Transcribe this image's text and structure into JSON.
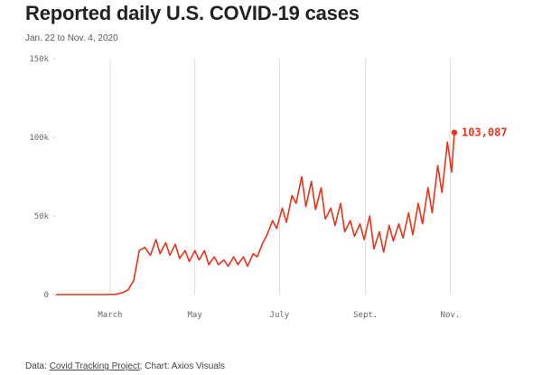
{
  "header": {
    "title": "Reported daily U.S. COVID-19 cases",
    "subtitle": "Jan. 22 to Nov. 4, 2020"
  },
  "footer": {
    "prefix": "Data: ",
    "source_link": "Covid Tracking Project",
    "suffix": "; Chart: Axios Visuals"
  },
  "colors": {
    "line": "#e8341c",
    "grid": "#dddddd",
    "axis_text": "#666666"
  },
  "chart_data": {
    "type": "line",
    "title": "Reported daily U.S. COVID-19 cases",
    "subtitle": "Jan. 22 to Nov. 4, 2020",
    "xlabel": "",
    "ylabel": "",
    "ylim": [
      0,
      150000
    ],
    "xlim": [
      "2020-01-22",
      "2020-11-04"
    ],
    "y_ticks": [
      {
        "value": 0,
        "label": "0"
      },
      {
        "value": 50000,
        "label": "50k"
      },
      {
        "value": 100000,
        "label": "100k"
      },
      {
        "value": 150000,
        "label": "150k"
      }
    ],
    "x_ticks": [
      {
        "value": "2020-03-01",
        "label": "March"
      },
      {
        "value": "2020-05-01",
        "label": "May"
      },
      {
        "value": "2020-07-01",
        "label": "July"
      },
      {
        "value": "2020-09-01",
        "label": "Sept."
      },
      {
        "value": "2020-11-01",
        "label": "Nov."
      }
    ],
    "grid": "vertical",
    "series": [
      {
        "x": [
          "2020-01-22",
          "2020-02-25",
          "2020-03-05",
          "2020-03-10",
          "2020-03-14",
          "2020-03-18",
          "2020-03-22",
          "2020-03-26",
          "2020-03-30",
          "2020-04-03",
          "2020-04-06",
          "2020-04-10",
          "2020-04-13",
          "2020-04-17",
          "2020-04-20",
          "2020-04-24",
          "2020-04-27",
          "2020-05-01",
          "2020-05-04",
          "2020-05-08",
          "2020-05-11",
          "2020-05-15",
          "2020-05-18",
          "2020-05-22",
          "2020-05-25",
          "2020-05-29",
          "2020-06-01",
          "2020-06-05",
          "2020-06-08",
          "2020-06-12",
          "2020-06-15",
          "2020-06-19",
          "2020-06-22",
          "2020-06-26",
          "2020-06-29",
          "2020-07-03",
          "2020-07-06",
          "2020-07-10",
          "2020-07-13",
          "2020-07-17",
          "2020-07-20",
          "2020-07-24",
          "2020-07-27",
          "2020-07-31",
          "2020-08-03",
          "2020-08-07",
          "2020-08-10",
          "2020-08-14",
          "2020-08-17",
          "2020-08-21",
          "2020-08-24",
          "2020-08-28",
          "2020-08-31",
          "2020-09-04",
          "2020-09-07",
          "2020-09-11",
          "2020-09-14",
          "2020-09-18",
          "2020-09-21",
          "2020-09-25",
          "2020-09-28",
          "2020-10-02",
          "2020-10-05",
          "2020-10-09",
          "2020-10-12",
          "2020-10-16",
          "2020-10-19",
          "2020-10-23",
          "2020-10-26",
          "2020-10-30",
          "2020-11-02",
          "2020-11-04"
        ],
        "y": [
          0,
          0,
          200,
          1200,
          3000,
          9000,
          28000,
          30000,
          25000,
          35000,
          26000,
          33000,
          25000,
          32000,
          23000,
          28000,
          21000,
          28000,
          22000,
          28000,
          19000,
          24000,
          19000,
          22000,
          18000,
          24000,
          19000,
          24000,
          18000,
          26000,
          24000,
          33000,
          38000,
          47000,
          42000,
          55000,
          46000,
          63000,
          58000,
          75000,
          56000,
          72000,
          54000,
          68000,
          48000,
          55000,
          44000,
          58000,
          40000,
          47000,
          37000,
          45000,
          35000,
          50000,
          29000,
          40000,
          27000,
          44000,
          34000,
          45000,
          36000,
          52000,
          38000,
          58000,
          45000,
          68000,
          52000,
          82000,
          65000,
          97000,
          78000,
          103087
        ]
      }
    ],
    "annotations": [
      {
        "text": "103,087",
        "x": "2020-11-04",
        "y": 103087
      }
    ]
  }
}
